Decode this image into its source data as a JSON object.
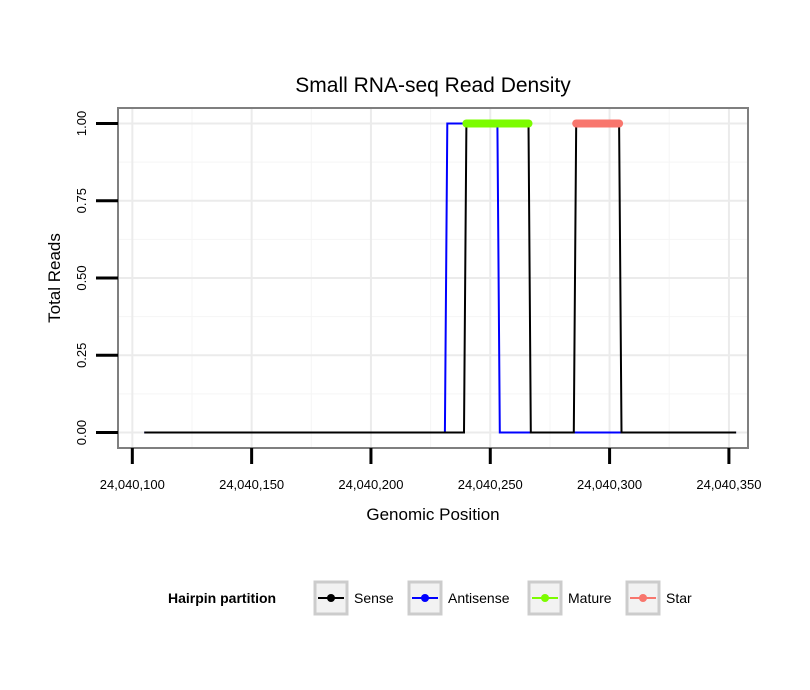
{
  "chart_data": {
    "type": "line",
    "title": "Small RNA-seq Read Density",
    "xlabel": "Genomic Position",
    "ylabel": "Total Reads",
    "xlim": [
      24040094,
      24040358
    ],
    "ylim": [
      -0.05,
      1.05
    ],
    "x_ticks": [
      24040100,
      24040150,
      24040200,
      24040250,
      24040300,
      24040350
    ],
    "x_tick_labels": [
      "24,040,100",
      "24,040,150",
      "24,040,200",
      "24,040,250",
      "24,040,300",
      "24,040,350"
    ],
    "y_ticks": [
      0,
      0.25,
      0.5,
      0.75,
      1.0
    ],
    "y_tick_labels": [
      "0.00",
      "0.25",
      "0.50",
      "0.75",
      "1.00"
    ],
    "grid": true,
    "legend": {
      "title": "Hairpin partition",
      "position": "bottom",
      "entries": [
        "Sense",
        "Antisense",
        "Mature",
        "Star"
      ]
    },
    "series": [
      {
        "name": "Antisense",
        "color": "#0000ff",
        "x": [
          24040105,
          24040231,
          24040232,
          24040253,
          24040254,
          24040353
        ],
        "y": [
          0,
          0,
          1,
          1,
          0,
          0
        ]
      },
      {
        "name": "Sense",
        "color": "#000000",
        "x": [
          24040105,
          24040239,
          24040240,
          24040266,
          24040267,
          24040285,
          24040286,
          24040304,
          24040305,
          24040353
        ],
        "y": [
          0,
          0,
          1,
          1,
          0,
          0,
          1,
          1,
          0,
          0
        ]
      },
      {
        "name": "Mature",
        "color": "#7cfc00",
        "x": [
          24040240,
          24040266
        ],
        "y": [
          1,
          1
        ]
      },
      {
        "name": "Star",
        "color": "#f8766d",
        "x": [
          24040286,
          24040304
        ],
        "y": [
          1,
          1
        ]
      }
    ]
  }
}
